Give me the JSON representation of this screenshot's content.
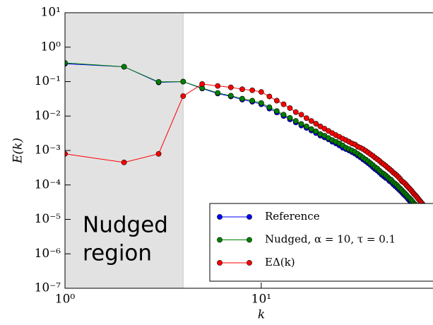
{
  "chart_data": {
    "type": "line",
    "log_x": true,
    "log_y": true,
    "xlabel": "k",
    "ylabel": "E(k)",
    "xlim": [
      1,
      75
    ],
    "ylim": [
      1e-07,
      10
    ],
    "xticks": [
      {
        "value": 1,
        "label": "10⁰"
      },
      {
        "value": 10,
        "label": "10¹"
      }
    ],
    "yticks": [
      {
        "value": 10,
        "label": "10¹"
      },
      {
        "value": 1,
        "label": "10⁰"
      },
      {
        "value": 0.1,
        "label": "10⁻¹"
      },
      {
        "value": 0.01,
        "label": "10⁻²"
      },
      {
        "value": 0.001,
        "label": "10⁻³"
      },
      {
        "value": 0.0001,
        "label": "10⁻⁴"
      },
      {
        "value": 1e-05,
        "label": "10⁻⁵"
      },
      {
        "value": 1e-06,
        "label": "10⁻⁶"
      },
      {
        "value": 1e-07,
        "label": "10⁻⁷"
      }
    ],
    "shaded_region": {
      "x": [
        1,
        4
      ],
      "color": "#e2e2e2",
      "label": [
        "Nudged",
        "region"
      ]
    },
    "legend": "lower right",
    "x": [
      1,
      2,
      3,
      4,
      5,
      6,
      7,
      8,
      9,
      10,
      11,
      12,
      13,
      14,
      15,
      16,
      17,
      18,
      19,
      20,
      21,
      22,
      23,
      24,
      25,
      26,
      27,
      28,
      29,
      30,
      31,
      32,
      33,
      34,
      35,
      36,
      37,
      38,
      39,
      40,
      41,
      42,
      43,
      44,
      45,
      46,
      47,
      48,
      49,
      50,
      51,
      52,
      53,
      54,
      55,
      56,
      57,
      58,
      59,
      60,
      61,
      62,
      63,
      64,
      65,
      66,
      67,
      68,
      69,
      70
    ],
    "series": [
      {
        "name": "Reference",
        "color": "#0000ff",
        "values": [
          0.33,
          0.27,
          0.095,
          0.1,
          0.063,
          0.045,
          0.037,
          0.03,
          0.026,
          0.022,
          0.0164,
          0.0127,
          0.01,
          0.008,
          0.0065,
          0.0053,
          0.0045,
          0.0038,
          0.0032,
          0.0027,
          0.0024,
          0.0021,
          0.0018,
          0.0016,
          0.0014,
          0.0012,
          0.0011,
          0.001,
          0.0009,
          0.00081,
          0.00071,
          0.00063,
          0.00055,
          0.00049,
          0.00043,
          0.00038,
          0.00033,
          0.00029,
          0.00026,
          0.00023,
          0.0002,
          0.00018,
          0.00016,
          0.00015,
          0.00013,
          0.00012,
          0.000105,
          9.4e-05,
          8.5e-05,
          7.6e-05,
          6.8e-05,
          6.1e-05,
          5.4e-05,
          4.9e-05,
          4.4e-05,
          3.9e-05,
          3.5e-05,
          3.2e-05,
          2.8e-05,
          2.5e-05,
          2.3e-05,
          2e-05,
          1.8e-05,
          1.6e-05,
          1.4e-05,
          1.3e-05,
          1.1e-05,
          1e-05,
          9e-06,
          8e-06
        ]
      },
      {
        "name": "Nudged, α = 10, τ = 0.1",
        "color": "#008000",
        "values": [
          0.35,
          0.27,
          0.098,
          0.1,
          0.065,
          0.047,
          0.039,
          0.032,
          0.028,
          0.024,
          0.018,
          0.014,
          0.011,
          0.0089,
          0.0072,
          0.0059,
          0.005,
          0.0042,
          0.0036,
          0.003,
          0.0027,
          0.0023,
          0.002,
          0.0018,
          0.0016,
          0.0014,
          0.0012,
          0.0011,
          0.001,
          0.00091,
          0.0008,
          0.00071,
          0.00062,
          0.00055,
          0.00049,
          0.00043,
          0.00038,
          0.00033,
          0.0003,
          0.00026,
          0.00023,
          0.00021,
          0.00019,
          0.00017,
          0.00015,
          0.00014,
          0.00012,
          0.00011,
          0.0001,
          8.8e-05,
          7.9e-05,
          7.1e-05,
          6.3e-05,
          5.7e-05,
          5.1e-05,
          4.5e-05,
          4.1e-05,
          3.7e-05,
          3.3e-05,
          2.9e-05,
          2.7e-05,
          2.4e-05,
          2.1e-05,
          1.9e-05,
          1.7e-05,
          1.5e-05,
          1.3e-05,
          1.2e-05,
          1.1e-05,
          9.5e-06
        ]
      },
      {
        "name": "EΔ(k)",
        "color": "#ff0000",
        "values": [
          0.0008,
          0.00045,
          0.0008,
          0.038,
          0.085,
          0.075,
          0.068,
          0.06,
          0.056,
          0.05,
          0.037,
          0.028,
          0.022,
          0.017,
          0.013,
          0.011,
          0.0087,
          0.0072,
          0.006,
          0.005,
          0.0043,
          0.0037,
          0.0032,
          0.0028,
          0.0025,
          0.0022,
          0.002,
          0.0018,
          0.0016,
          0.0015,
          0.0013,
          0.0012,
          0.0011,
          0.00098,
          0.00088,
          0.00078,
          0.0007,
          0.00062,
          0.00056,
          0.0005,
          0.00044,
          0.0004,
          0.00036,
          0.00032,
          0.00029,
          0.00026,
          0.00023,
          0.00021,
          0.00019,
          0.00017,
          0.00015,
          0.00013,
          0.00012,
          0.00011,
          9.7e-05,
          8.7e-05,
          7.8e-05,
          7e-05,
          6.2e-05,
          5.5e-05,
          5e-05,
          4.5e-05,
          4e-05,
          3.6e-05,
          3.2e-05,
          2.9e-05,
          2.6e-05,
          2.3e-05,
          2.1e-05,
          1.9e-05
        ]
      }
    ]
  }
}
